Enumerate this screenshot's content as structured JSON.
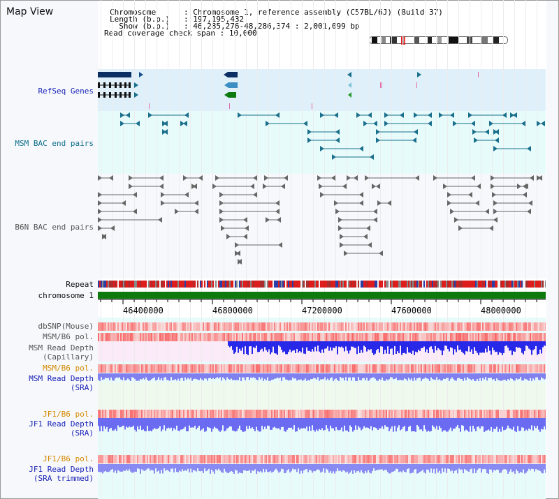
{
  "window": {
    "title": "Map View"
  },
  "header": {
    "rows": [
      {
        "key": "Chromosome      ",
        "value": "Chromosome 1, reference assembly (C57BL/6J) (Build 37)"
      },
      {
        "key": "Length (b.p.)   ",
        "value": "197,195,432"
      },
      {
        "key": "  Show (b.p.)   ",
        "value": "46,285,276-48,286,374 : 2,001,099 bp"
      },
      {
        "key": "Read coverage check span",
        "value": "10,000"
      }
    ]
  },
  "tracks": {
    "refseq": "RefSeq Genes",
    "msm_bac": "MSM BAC end pairs",
    "b6n_bac": "B6N BAC end pairs",
    "repeat": "Repeat",
    "chromosome": "chromosome 1",
    "dbsnp": "dbSNP(Mouse)",
    "msm_b6_pol_1": "MSM/B6 pol.",
    "msm_depth_cap_1": "MSM Read Depth",
    "msm_depth_cap_2": "(Capillary)",
    "msm_b6_pol_2": "MSM/B6 pol.",
    "msm_depth_sra_1": "MSM Read Depth",
    "msm_depth_sra_2": "(SRA)",
    "jf1_b6_pol_1": "JF1/B6 pol.",
    "jf1_depth_sra_1": "JF1 Read Depth",
    "jf1_depth_sra_2": "(SRA)",
    "jf1_b6_pol_2": "JF1/B6 pol.",
    "jf1_depth_trim_1": "JF1 Read Depth",
    "jf1_depth_trim_2": "(SRA trimmed)"
  },
  "axis": {
    "ticks": [
      "46400000",
      "46800000",
      "47200000",
      "47600000",
      "48000000"
    ]
  },
  "colors": {
    "refseq_bg": "#dff0fa",
    "msm_bac_bg": "#e7fbfb",
    "msm_bac": "#1a6f8c",
    "b6n_bac": "#555555",
    "repeat_red": "#dd1c1c",
    "chromosome_green": "#0c7a0c",
    "depth_blue": "#2828e8",
    "depth_light": "#6b6bf2",
    "pol_pink": "#f6a8a8"
  }
}
